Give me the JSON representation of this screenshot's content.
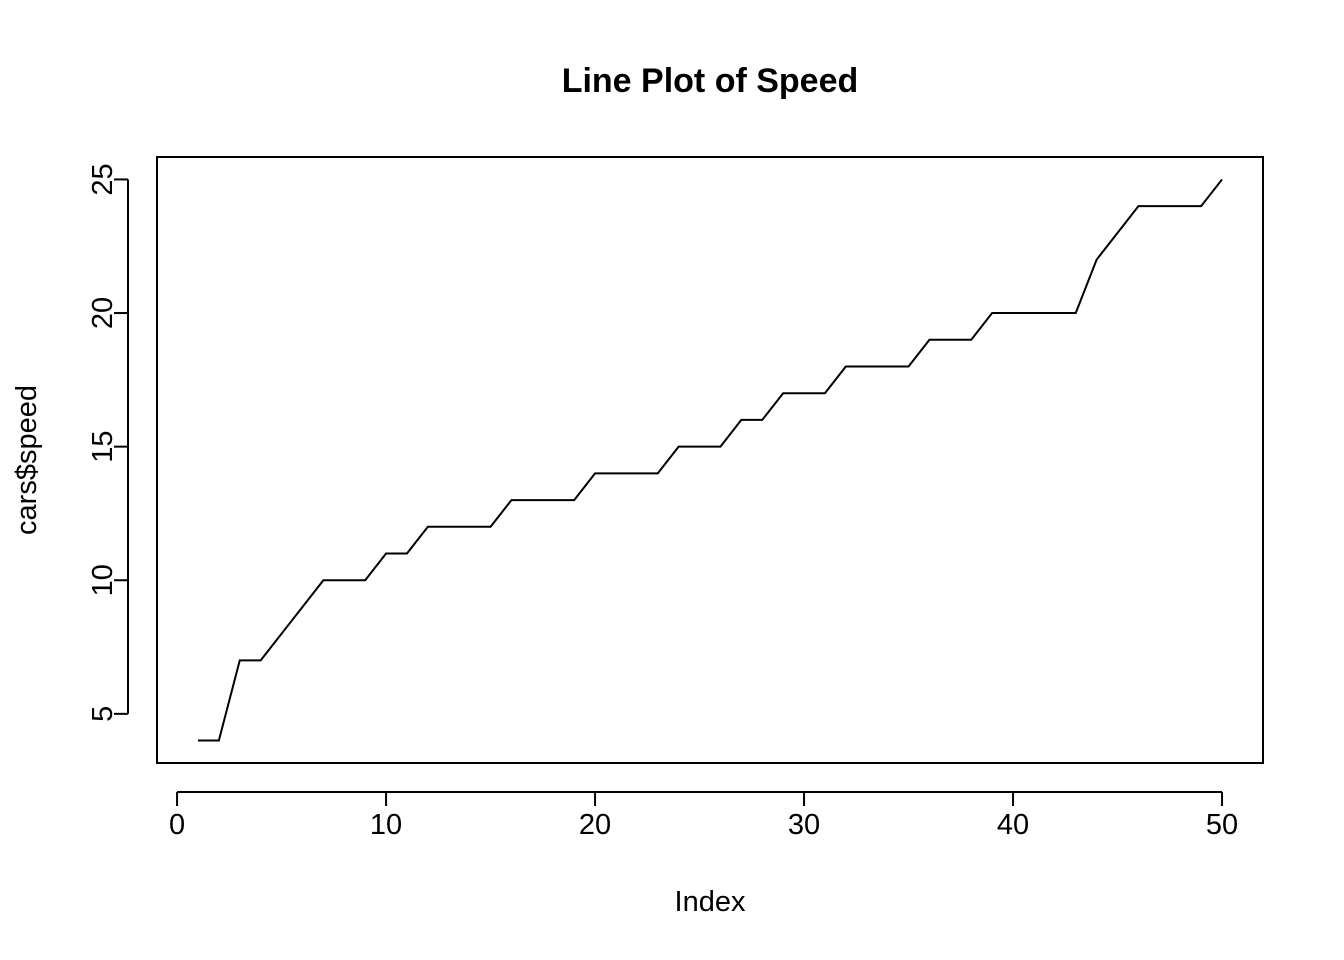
{
  "chart_data": {
    "type": "line",
    "title": "Line Plot of Speed",
    "xlabel": "Index",
    "ylabel": "cars$speed",
    "xlim": [
      1,
      50
    ],
    "ylim": [
      4,
      25
    ],
    "x_ticks": [
      0,
      10,
      20,
      30,
      40,
      50
    ],
    "y_ticks": [
      5,
      10,
      15,
      20,
      25
    ],
    "x_tick_labels": [
      "0",
      "10",
      "20",
      "30",
      "40",
      "50"
    ],
    "y_tick_labels": [
      "5",
      "10",
      "15",
      "20",
      "25"
    ],
    "grid": false,
    "series": [
      {
        "color": "#000000",
        "x": [
          1,
          2,
          3,
          4,
          5,
          6,
          7,
          8,
          9,
          10,
          11,
          12,
          13,
          14,
          15,
          16,
          17,
          18,
          19,
          20,
          21,
          22,
          23,
          24,
          25,
          26,
          27,
          28,
          29,
          30,
          31,
          32,
          33,
          34,
          35,
          36,
          37,
          38,
          39,
          40,
          41,
          42,
          43,
          44,
          45,
          46,
          47,
          48,
          49,
          50
        ],
        "y": [
          4,
          4,
          7,
          7,
          8,
          9,
          10,
          10,
          10,
          11,
          11,
          12,
          12,
          12,
          12,
          13,
          13,
          13,
          13,
          14,
          14,
          14,
          14,
          15,
          15,
          15,
          16,
          16,
          17,
          17,
          17,
          18,
          18,
          18,
          18,
          19,
          19,
          19,
          20,
          20,
          20,
          20,
          20,
          22,
          23,
          24,
          24,
          24,
          24,
          25
        ]
      }
    ]
  }
}
